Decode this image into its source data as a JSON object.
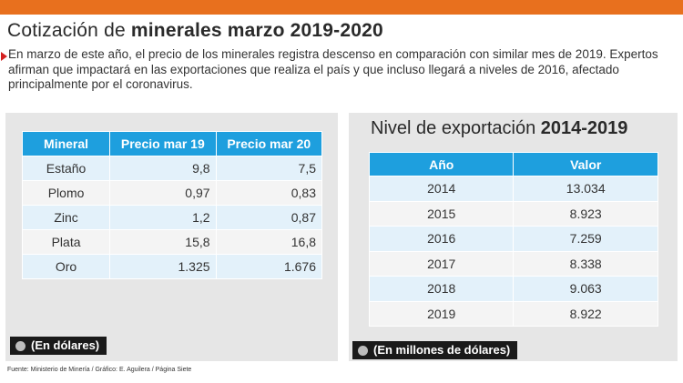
{
  "colors": {
    "accent": "#e8701e",
    "header": "#1e9fde",
    "panel": "#e6e6e6"
  },
  "header": {
    "title_regular": "Cotización de ",
    "title_bold": "minerales marzo 2019-2020",
    "description": "En marzo de este año, el precio de los minerales registra descenso en comparación con similar mes de 2019. Expertos afirman que impactará en las exportaciones que realiza el país y que incluso llegará a niveles de 2016, afectado principalmente por el coronavirus."
  },
  "prices_table": {
    "columns": [
      "Mineral",
      "Precio mar 19",
      "Precio mar 20"
    ],
    "rows": [
      [
        "Estaño",
        "9,8",
        "7,5"
      ],
      [
        "Plomo",
        "0,97",
        "0,83"
      ],
      [
        "Zinc",
        "1,2",
        "0,87"
      ],
      [
        "Plata",
        "15,8",
        "16,8"
      ],
      [
        "Oro",
        "1.325",
        "1.676"
      ]
    ],
    "note": "(En dólares)"
  },
  "export_table": {
    "title_regular": "Nivel de exportación ",
    "title_bold": "2014-2019",
    "columns": [
      "Año",
      "Valor"
    ],
    "rows": [
      [
        "2014",
        "13.034"
      ],
      [
        "2015",
        "8.923"
      ],
      [
        "2016",
        "7.259"
      ],
      [
        "2017",
        "8.338"
      ],
      [
        "2018",
        "9.063"
      ],
      [
        "2019",
        "8.922"
      ]
    ],
    "note": "(En millones de dólares)"
  },
  "source": "Fuente: Ministerio de Minería / Gráfico: E. Aguilera / Página Siete"
}
